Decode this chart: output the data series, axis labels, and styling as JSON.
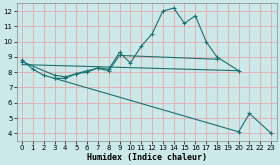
{
  "xlabel": "Humidex (Indice chaleur)",
  "background_color": "#cce9e9",
  "grid_color": "#e8a8a8",
  "line_color": "#1a7070",
  "xlim": [
    -0.5,
    23.5
  ],
  "ylim": [
    3.5,
    12.5
  ],
  "yticks": [
    4,
    5,
    6,
    7,
    8,
    9,
    10,
    11,
    12
  ],
  "xticks": [
    0,
    1,
    2,
    3,
    4,
    5,
    6,
    7,
    8,
    9,
    10,
    11,
    12,
    13,
    14,
    15,
    16,
    17,
    18,
    19,
    20,
    21,
    22,
    23
  ],
  "s1x": [
    0,
    1,
    2,
    3,
    4,
    5,
    6,
    7,
    8,
    9,
    10,
    11,
    12,
    13,
    14,
    15,
    16,
    17,
    18,
    20
  ],
  "s1y": [
    8.8,
    8.2,
    7.8,
    7.6,
    7.6,
    7.9,
    8.0,
    8.3,
    8.2,
    9.3,
    8.6,
    9.7,
    10.5,
    12.0,
    12.2,
    11.2,
    11.7,
    10.0,
    9.0,
    8.1
  ],
  "s2x": [
    0,
    3,
    4,
    5,
    6,
    7,
    8,
    9,
    18
  ],
  "s2y": [
    8.7,
    7.8,
    7.7,
    7.9,
    8.1,
    8.25,
    8.1,
    9.1,
    8.85
  ],
  "s3x": [
    0,
    20
  ],
  "s3y": [
    8.5,
    8.1
  ],
  "s4x": [
    3,
    20,
    21,
    23
  ],
  "s4y": [
    7.6,
    4.1,
    5.3,
    4.0
  ]
}
